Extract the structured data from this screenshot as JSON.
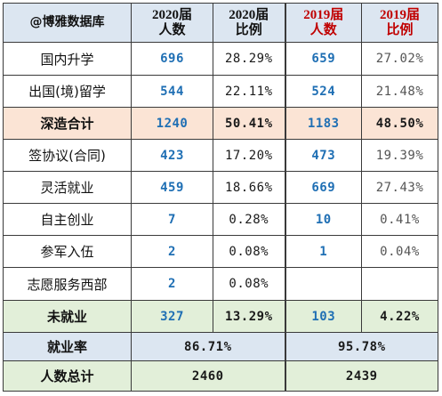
{
  "header": {
    "brand": "@博雅数据库",
    "col_2020_count": "2020届\n人数",
    "col_2020_ratio": "2020届\n比例",
    "col_2019_count": "2019届\n人数",
    "col_2019_ratio": "2019届\n比例"
  },
  "rows": [
    {
      "label": "国内升学",
      "c2020": "696",
      "r2020": "28.29%",
      "c2019": "659",
      "r2019": "27.02%"
    },
    {
      "label": "出国(境)留学",
      "c2020": "544",
      "r2020": "22.11%",
      "c2019": "524",
      "r2019": "21.48%"
    },
    {
      "label": "深造合计",
      "c2020": "1240",
      "r2020": "50.41%",
      "c2019": "1183",
      "r2019": "48.50%"
    },
    {
      "label": "签协议(合同)",
      "c2020": "423",
      "r2020": "17.20%",
      "c2019": "473",
      "r2019": "19.39%"
    },
    {
      "label": "灵活就业",
      "c2020": "459",
      "r2020": "18.66%",
      "c2019": "669",
      "r2019": "27.43%"
    },
    {
      "label": "自主创业",
      "c2020": "7",
      "r2020": "0.28%",
      "c2019": "10",
      "r2019": "0.41%"
    },
    {
      "label": "参军入伍",
      "c2020": "2",
      "r2020": "0.08%",
      "c2019": "1",
      "r2019": "0.04%"
    },
    {
      "label": "志愿服务西部",
      "c2020": "2",
      "r2020": "0.08%",
      "c2019": "",
      "r2019": ""
    },
    {
      "label": "未就业",
      "c2020": "327",
      "r2020": "13.29%",
      "c2019": "103",
      "r2019": "4.22%"
    }
  ],
  "employment_rate": {
    "label": "就业率",
    "v2020": "86.71%",
    "v2019": "95.78%"
  },
  "total": {
    "label": "人数总计",
    "v2020": "2460",
    "v2019": "2439"
  }
}
